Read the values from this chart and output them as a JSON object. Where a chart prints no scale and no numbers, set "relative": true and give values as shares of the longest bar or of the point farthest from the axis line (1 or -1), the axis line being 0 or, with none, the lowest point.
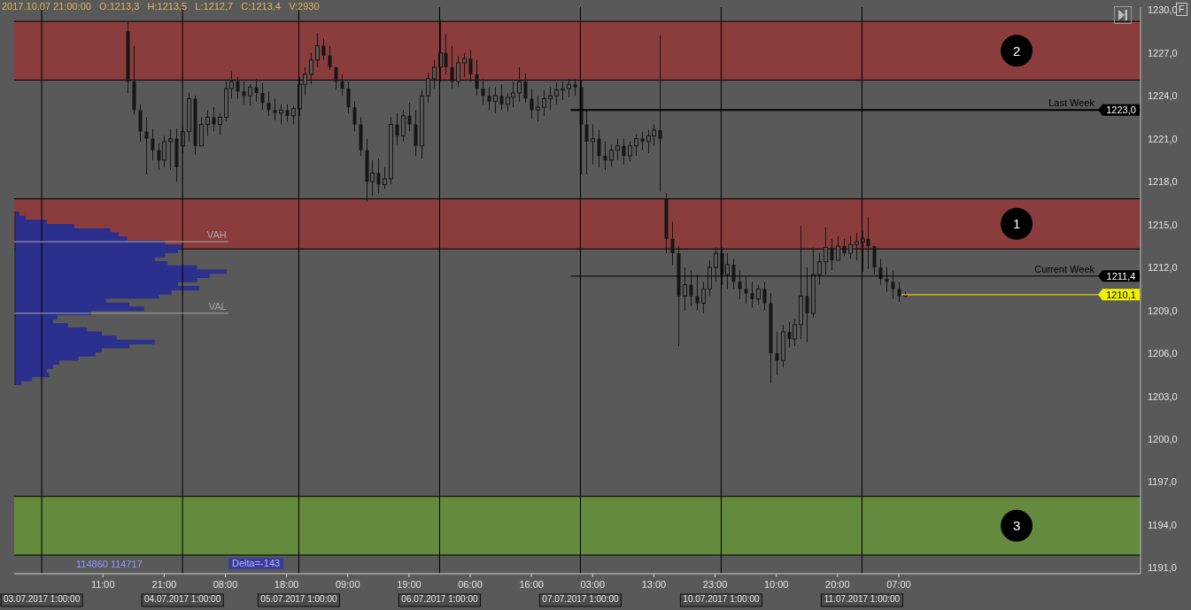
{
  "chart_data": [
    {
      "type": "candlestick",
      "color": "#161616",
      "categories": [
        null,
        null,
        null,
        null,
        "03.07.2017 1:00:00",
        null,
        null,
        null,
        null,
        null,
        null,
        null,
        null,
        null,
        "11:00",
        null,
        null,
        null,
        null,
        null,
        null,
        null,
        null,
        null,
        "21:00",
        null,
        null,
        "04.07.2017 1:00:00",
        null,
        null,
        null,
        null,
        null,
        null,
        "08:00",
        null,
        null,
        null,
        null,
        null,
        null,
        null,
        null,
        null,
        "18:00",
        null,
        "05.07.2017 1:00:00",
        null,
        null,
        null,
        null,
        null,
        null,
        null,
        "09:00",
        null,
        null,
        null,
        null,
        null,
        null,
        null,
        null,
        null,
        "19:00",
        null,
        null,
        null,
        null,
        "06.07.2017 1:00:00",
        null,
        null,
        null,
        null,
        "06:00",
        null,
        null,
        null,
        null,
        null,
        null,
        null,
        null,
        null,
        "16:00",
        null,
        null,
        null,
        null,
        null,
        null,
        null,
        "07.07.2017 1:00:00",
        null,
        "03:00",
        null,
        null,
        null,
        null,
        null,
        null,
        null,
        null,
        null,
        "13:00",
        null,
        null,
        null,
        null,
        null,
        null,
        null,
        null,
        null,
        "23:00",
        "10.07.2017 1:00:00",
        null,
        null,
        null,
        null,
        null,
        null,
        null,
        null,
        "10:00",
        null,
        null,
        null,
        null,
        null,
        null,
        null,
        null,
        null,
        "20:00",
        null,
        null,
        null,
        "11.07.2017 1:00:00",
        null,
        null,
        null,
        null,
        null,
        "07:00",
        null,
        null,
        null,
        null,
        null,
        null,
        null,
        null,
        null,
        null,
        null,
        null,
        null,
        null,
        null,
        null,
        null,
        null,
        null,
        null,
        null,
        null,
        null,
        null,
        null,
        null,
        null,
        null,
        null,
        null,
        null,
        null,
        null,
        null,
        null,
        null,
        null,
        null,
        null
      ],
      "ohlc": [
        null,
        null,
        null,
        null,
        null,
        null,
        null,
        null,
        null,
        null,
        null,
        null,
        null,
        null,
        null,
        null,
        null,
        null,
        [
          1228.5,
          1229.2,
          1224.2,
          1225.0
        ],
        [
          1225.0,
          1227.5,
          1222.7,
          1223.0
        ],
        [
          1223.0,
          1223.4,
          1220.8,
          1221.5
        ],
        [
          1221.5,
          1222.5,
          1218.5,
          1221.0
        ],
        [
          1221.0,
          1221.7,
          1219.5,
          1220.2
        ],
        [
          1220.2,
          1220.7,
          1218.8,
          1219.5
        ],
        [
          1219.5,
          1221.2,
          1219.0,
          1220.8
        ],
        [
          1220.8,
          1221.7,
          1218.8,
          1221.0
        ],
        [
          1221.0,
          1221.7,
          1218.0,
          1219.0
        ],
        [
          1220.5,
          1221.8,
          1220.0,
          1221.5
        ],
        [
          1221.5,
          1224.2,
          1220.8,
          1223.8
        ],
        [
          1223.8,
          1224.0,
          1219.9,
          1220.5
        ],
        [
          1220.5,
          1222.5,
          1220.5,
          1222.0
        ],
        [
          1222.0,
          1223.0,
          1221.2,
          1222.5
        ],
        [
          1222.5,
          1223.2,
          1221.5,
          1222.0
        ],
        [
          1222.0,
          1222.8,
          1221.3,
          1222.5
        ],
        [
          1222.5,
          1225.0,
          1222.2,
          1224.5
        ],
        [
          1224.5,
          1225.7,
          1223.8,
          1225.0
        ],
        [
          1225.0,
          1225.3,
          1223.8,
          1224.3
        ],
        [
          1224.3,
          1225.0,
          1223.4,
          1224.0
        ],
        [
          1224.0,
          1224.8,
          1223.3,
          1224.6
        ],
        [
          1224.6,
          1225.2,
          1223.6,
          1224.2
        ],
        [
          1224.2,
          1224.9,
          1223.0,
          1223.5
        ],
        [
          1223.5,
          1224.3,
          1222.6,
          1223.0
        ],
        [
          1223.0,
          1223.8,
          1222.3,
          1222.8
        ],
        [
          1222.8,
          1223.4,
          1222.0,
          1223.0
        ],
        [
          1223.0,
          1223.4,
          1222.2,
          1222.6
        ],
        [
          1222.6,
          1223.3,
          1222.0,
          1223.1
        ],
        [
          1223.1,
          1225.3,
          1222.6,
          1224.8
        ],
        [
          1224.8,
          1226.0,
          1224.0,
          1225.5
        ],
        [
          1225.5,
          1227.0,
          1224.8,
          1226.5
        ],
        [
          1226.5,
          1228.4,
          1226.0,
          1227.5
        ],
        [
          1227.5,
          1228.0,
          1226.5,
          1226.8
        ],
        [
          1226.8,
          1227.5,
          1225.8,
          1226.0
        ],
        [
          1226.0,
          1226.0,
          1224.4,
          1225.0
        ],
        [
          1225.0,
          1225.5,
          1224.0,
          1224.5
        ],
        [
          1224.5,
          1225.0,
          1222.8,
          1223.2
        ],
        [
          1223.2,
          1223.6,
          1221.5,
          1222.0
        ],
        [
          1222.0,
          1222.5,
          1219.8,
          1220.2
        ],
        [
          1220.2,
          1221.0,
          1216.6,
          1218.0
        ],
        [
          1218.0,
          1219.5,
          1217.0,
          1218.6
        ],
        [
          1218.6,
          1219.6,
          1217.2,
          1217.8
        ],
        [
          1217.8,
          1219.0,
          1217.5,
          1218.2
        ],
        [
          1218.2,
          1222.5,
          1217.8,
          1222.0
        ],
        [
          1222.0,
          1222.8,
          1220.6,
          1221.2
        ],
        [
          1221.2,
          1223.0,
          1220.8,
          1222.6
        ],
        [
          1222.6,
          1223.5,
          1221.5,
          1222.0
        ],
        [
          1222.0,
          1223.0,
          1219.8,
          1220.5
        ],
        [
          1220.5,
          1224.4,
          1219.6,
          1224.0
        ],
        [
          1224.0,
          1225.6,
          1223.5,
          1225.2
        ],
        [
          1225.2,
          1226.5,
          1224.5,
          1226.0
        ],
        [
          1226.0,
          1229.3,
          1225.0,
          1227.0
        ],
        [
          1227.0,
          1228.3,
          1225.5,
          1226.0
        ],
        [
          1226.0,
          1227.5,
          1224.5,
          1225.0
        ],
        [
          1225.0,
          1226.8,
          1224.6,
          1226.3
        ],
        [
          1226.3,
          1227.0,
          1225.3,
          1226.6
        ],
        [
          1226.6,
          1227.2,
          1225.0,
          1225.5
        ],
        [
          1225.5,
          1226.5,
          1224.0,
          1224.5
        ],
        [
          1224.5,
          1225.2,
          1223.4,
          1224.0
        ],
        [
          1224.0,
          1224.6,
          1223.0,
          1223.6
        ],
        [
          1223.6,
          1224.6,
          1222.8,
          1224.0
        ],
        [
          1224.0,
          1224.8,
          1223.0,
          1223.4
        ],
        [
          1223.4,
          1224.2,
          1222.9,
          1223.9
        ],
        [
          1223.9,
          1225.0,
          1223.2,
          1224.2
        ],
        [
          1224.2,
          1226.0,
          1223.6,
          1225.0
        ],
        [
          1225.0,
          1225.6,
          1223.5,
          1223.8
        ],
        [
          1223.8,
          1224.5,
          1222.4,
          1223.0
        ],
        [
          1223.0,
          1224.0,
          1222.2,
          1223.2
        ],
        [
          1223.2,
          1224.4,
          1222.6,
          1223.8
        ],
        [
          1223.8,
          1224.6,
          1223.0,
          1224.0
        ],
        [
          1224.0,
          1224.9,
          1223.4,
          1224.4
        ],
        [
          1224.4,
          1225.0,
          1223.7,
          1224.5
        ],
        [
          1224.5,
          1225.2,
          1223.9,
          1224.8
        ],
        [
          1224.8,
          1225.2,
          1224.0,
          1224.6
        ],
        [
          1224.6,
          1225.1,
          1218.5,
          1222.0
        ],
        [
          1222.0,
          1223.0,
          1218.5,
          1220.8
        ],
        [
          1220.8,
          1222.0,
          1219.2,
          1221.0
        ],
        [
          1221.0,
          1221.6,
          1219.0,
          1219.8
        ],
        [
          1219.8,
          1220.8,
          1218.8,
          1219.5
        ],
        [
          1219.5,
          1220.6,
          1219.0,
          1220.2
        ],
        [
          1220.2,
          1221.0,
          1219.5,
          1220.5
        ],
        [
          1220.5,
          1221.0,
          1219.2,
          1219.8
        ],
        [
          1219.8,
          1220.8,
          1219.4,
          1220.5
        ],
        [
          1220.5,
          1221.3,
          1219.8,
          1221.0
        ],
        [
          1221.0,
          1221.5,
          1220.2,
          1220.8
        ],
        [
          1220.8,
          1221.6,
          1220.0,
          1221.2
        ],
        [
          1221.2,
          1222.0,
          1220.5,
          1221.6
        ],
        [
          1221.6,
          1228.2,
          1217.3,
          1221.0
        ],
        [
          1216.8,
          1217.2,
          1213.0,
          1214.0
        ],
        [
          1214.0,
          1215.2,
          1212.2,
          1213.0
        ],
        [
          1213.0,
          1213.5,
          1206.5,
          1210.0
        ],
        [
          1210.0,
          1212.0,
          1209.0,
          1210.8
        ],
        [
          1210.8,
          1211.8,
          1209.3,
          1210.0
        ],
        [
          1210.0,
          1211.5,
          1209.0,
          1209.5
        ],
        [
          1209.5,
          1211.0,
          1208.8,
          1210.5
        ],
        [
          1210.5,
          1212.5,
          1210.0,
          1212.0
        ],
        [
          1212.0,
          1213.4,
          1211.0,
          1213.0
        ],
        [
          1213.0,
          1213.4,
          1210.8,
          1211.5
        ],
        [
          1211.5,
          1213.0,
          1210.5,
          1212.2
        ],
        [
          1212.2,
          1212.6,
          1210.5,
          1211.0
        ],
        [
          1211.0,
          1211.8,
          1209.8,
          1210.5
        ],
        [
          1210.5,
          1211.4,
          1209.5,
          1210.2
        ],
        [
          1210.2,
          1211.0,
          1209.2,
          1209.8
        ],
        [
          1209.8,
          1210.8,
          1209.4,
          1210.5
        ],
        [
          1210.5,
          1211.0,
          1209.0,
          1209.5
        ],
        [
          1209.5,
          1210.2,
          1203.9,
          1206.0
        ],
        [
          1206.0,
          1207.5,
          1204.5,
          1205.5
        ],
        [
          1205.5,
          1208.0,
          1205.0,
          1207.5
        ],
        [
          1207.5,
          1208.2,
          1206.4,
          1207.0
        ],
        [
          1207.0,
          1208.4,
          1206.5,
          1208.0
        ],
        [
          1208.0,
          1214.9,
          1207.0,
          1210.0
        ],
        [
          1210.0,
          1212.0,
          1206.8,
          1208.8
        ],
        [
          1208.8,
          1213.4,
          1208.5,
          1211.5
        ],
        [
          1211.5,
          1213.0,
          1210.8,
          1212.4
        ],
        [
          1212.4,
          1214.8,
          1211.5,
          1213.4
        ],
        [
          1213.4,
          1214.0,
          1211.8,
          1212.5
        ],
        [
          1212.5,
          1214.2,
          1212.5,
          1213.5
        ],
        [
          1213.5,
          1214.0,
          1212.8,
          1213.0
        ],
        [
          1213.0,
          1214.2,
          1212.6,
          1213.6
        ],
        [
          1213.6,
          1214.4,
          1212.5,
          1213.8
        ],
        [
          1213.8,
          1214.5,
          1211.7,
          1214.0
        ],
        [
          1214.0,
          1215.5,
          1211.9,
          1213.5
        ],
        [
          1213.5,
          1213.5,
          1211.5,
          1212.0
        ],
        [
          1212.0,
          1212.6,
          1210.8,
          1211.2
        ],
        [
          1211.2,
          1212.0,
          1210.3,
          1211.0
        ],
        [
          1211.0,
          1211.8,
          1209.8,
          1210.5
        ],
        [
          1210.5,
          1211.0,
          1209.6,
          1210.0
        ],
        [
          1210.0,
          1210.3,
          1209.9,
          1210.1
        ],
        null,
        null,
        null,
        null,
        null,
        null,
        null,
        null,
        null,
        null,
        null,
        null,
        null,
        null,
        null,
        null,
        null,
        null,
        null,
        null,
        null,
        null,
        null,
        null,
        null,
        null,
        null,
        null,
        null,
        null,
        null,
        null,
        null,
        null,
        null,
        null,
        null,
        null
      ],
      "ylim": [
        1190.6,
        1230.2
      ],
      "yticks": [
        {
          "value": 1191,
          "label": "1191,0"
        },
        {
          "value": 1194,
          "label": "1194,0"
        },
        {
          "value": 1197,
          "label": "1197,0"
        },
        {
          "value": 1200,
          "label": "1200,0"
        },
        {
          "value": 1203,
          "label": "1203,0"
        },
        {
          "value": 1206,
          "label": "1206,0"
        },
        {
          "value": 1209,
          "label": "1209,0"
        },
        {
          "value": 1212,
          "label": "1212,0"
        },
        {
          "value": 1215,
          "label": "1215,0"
        },
        {
          "value": 1218,
          "label": "1218,0"
        },
        {
          "value": 1221,
          "label": "1221,0"
        },
        {
          "value": 1224,
          "label": "1224,0"
        },
        {
          "value": 1227,
          "label": "1227,0"
        },
        {
          "value": 1230,
          "label": "1230,0"
        }
      ],
      "bands": [
        {
          "axis": "y",
          "from": 1225.1,
          "to": 1229.2,
          "label": "2",
          "color": "#8b3d3d"
        },
        {
          "axis": "y",
          "from": 1213.3,
          "to": 1216.8,
          "label": "1",
          "color": "#8b3d3d"
        },
        {
          "axis": "y",
          "from": 1191.9,
          "to": 1196.0,
          "label": "3",
          "color": "#638a3d"
        }
      ],
      "ref_lines": [
        {
          "axis": "y",
          "value": 1223.0,
          "label": "Last Week",
          "color": "#000000"
        },
        {
          "axis": "y",
          "value": 1211.4,
          "label": "Current Week",
          "color": "#000000"
        },
        {
          "axis": "y",
          "value": 1210.1,
          "color": "#f2f200"
        },
        {
          "axis": "y",
          "value": 1213.8,
          "label": "VAH",
          "color": "#a8a8a8"
        },
        {
          "axis": "y",
          "value": 1208.8,
          "label": "VAL",
          "color": "#a8a8a8"
        },
        {
          "axis": "x",
          "value": "03.07.2017 1:00:00",
          "color": "#000000"
        },
        {
          "axis": "x",
          "value": "04.07.2017 1:00:00",
          "color": "#000000"
        },
        {
          "axis": "x",
          "value": "05.07.2017 1:00:00",
          "color": "#000000"
        },
        {
          "axis": "x",
          "value": "06.07.2017 1:00:00",
          "color": "#000000"
        },
        {
          "axis": "x",
          "value": "07.07.2017 1:00:00",
          "color": "#000000"
        },
        {
          "axis": "x",
          "value": "10.07.2017 1:00:00",
          "color": "#000000"
        },
        {
          "axis": "x",
          "value": "11.07.2017 1:00:00",
          "color": "#000000"
        }
      ],
      "annotations": [
        "2017.10.07 21:00:00   O:1213,3   H:1213,5   L:1212,7   C:1213,4   V:2930",
        "114860 114717",
        "Delta=-143",
        "F",
        {
          "text": "1223,0",
          "y": 1223.0
        },
        {
          "text": "1211,4",
          "y": 1211.4
        },
        {
          "text": "1210,1",
          "y": 1210.1
        }
      ]
    },
    {
      "type": "bar",
      "orientation": "horizontal",
      "relative": true,
      "color": "#2b2f8e",
      "categories": [
        null,
        null,
        null,
        null,
        null,
        null,
        null,
        null,
        null,
        null,
        null,
        null,
        null,
        null,
        null,
        null,
        null,
        null,
        null,
        null,
        null,
        null,
        null,
        null,
        null,
        null,
        null,
        null,
        null,
        null,
        null,
        null,
        null,
        null,
        null,
        null,
        null,
        null,
        null,
        null,
        null,
        null
      ],
      "values": [
        0.02,
        0.05,
        0.15,
        0.28,
        0.45,
        0.49,
        0.53,
        0.71,
        0.79,
        0.77,
        0.71,
        0.66,
        0.72,
        0.86,
        1,
        0.92,
        0.86,
        0.77,
        0.87,
        0.74,
        0.68,
        0.43,
        0.54,
        0.61,
        0.36,
        0.2,
        0.18,
        0.25,
        0.34,
        0.41,
        0.48,
        0.66,
        0.54,
        0.41,
        0.38,
        0.3,
        0.21,
        0.18,
        0.15,
        0.16,
        0.08,
        0.03
      ]
    }
  ]
}
